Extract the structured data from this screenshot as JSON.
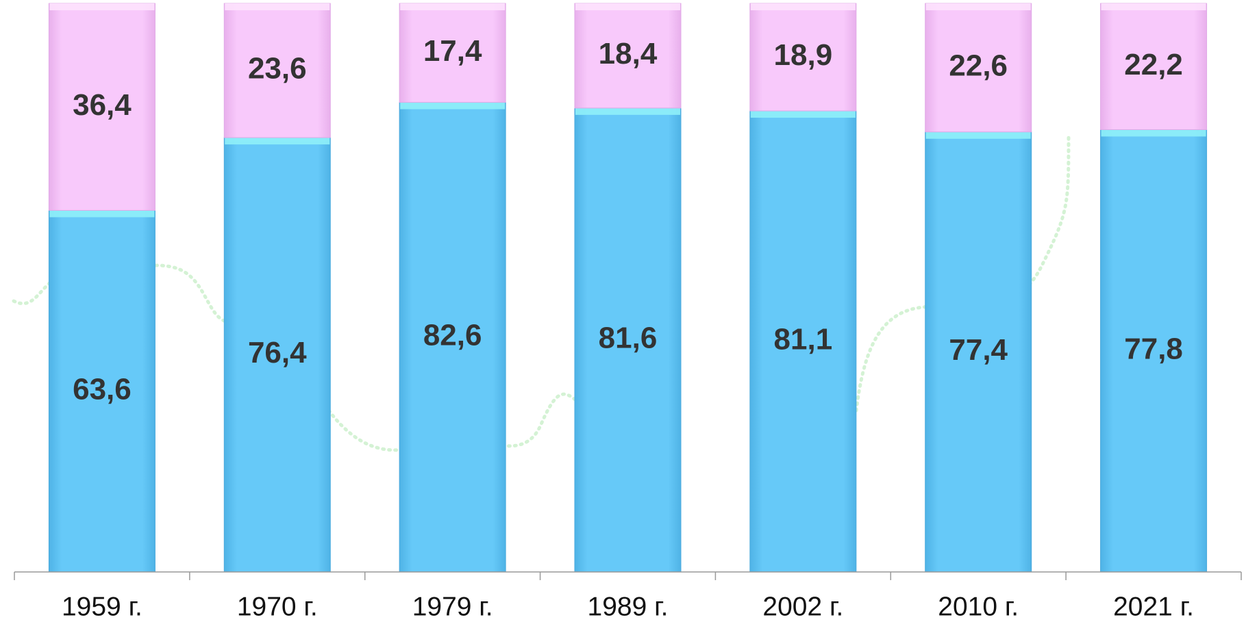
{
  "chart_data": {
    "type": "stacked_bar",
    "categories": [
      "1959 г.",
      "1970 г.",
      "1979 г.",
      "1989 г.",
      "2002 г.",
      "2010 г.",
      "2021 г."
    ],
    "series": [
      {
        "color": "#66c9f8",
        "values": [
          63.6,
          76.4,
          82.6,
          81.6,
          81.1,
          77.4,
          77.8
        ],
        "value_labels": [
          "63,6",
          "76,4",
          "82,6",
          "81,6",
          "81,1",
          "77,4",
          "77,8"
        ]
      },
      {
        "color": "#f8c9fb",
        "values": [
          36.4,
          23.6,
          17.4,
          18.4,
          18.9,
          22.6,
          22.2
        ],
        "value_labels": [
          "36,4",
          "23,6",
          "17,4",
          "18,4",
          "18,9",
          "22,6",
          "22,2"
        ]
      }
    ],
    "ylim": [
      0,
      100
    ]
  }
}
